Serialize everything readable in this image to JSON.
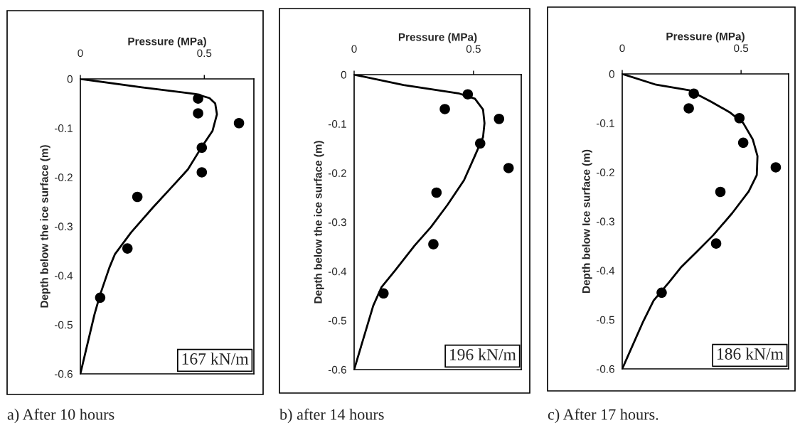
{
  "chart_data": [
    {
      "type": "scatter",
      "title": "a) After 10 hours",
      "xlabel": "Pressure (MPa)",
      "ylabel": "Depth below the ice surface (m)",
      "annotations": [
        "167 kN/m"
      ],
      "xlim": [
        0,
        0.7
      ],
      "xticks": [
        0,
        0.5
      ],
      "ylim": [
        -0.6,
        0
      ],
      "yticks": [
        0,
        -0.1,
        -0.2,
        -0.3,
        -0.4,
        -0.5,
        -0.6
      ],
      "grid": false,
      "series": [
        {
          "color": "#000000",
          "marker": "circle",
          "x": [
            0.475,
            0.475,
            0.64,
            0.49,
            0.49,
            0.23,
            0.19,
            0.08
          ],
          "values": [
            -0.04,
            -0.07,
            -0.09,
            -0.14,
            -0.19,
            -0.24,
            -0.345,
            -0.445
          ]
        },
        {
          "type": "line",
          "color": "#000000",
          "marker": "none",
          "x": [
            0,
            0.248,
            0.466,
            0.521,
            0.544,
            0.551,
            0.533,
            0.489,
            0.434,
            0.369,
            0.292,
            0.205,
            0.139,
            0.117,
            0.079,
            0.057,
            0
          ],
          "values": [
            0,
            -0.017,
            -0.031,
            -0.039,
            -0.05,
            -0.072,
            -0.106,
            -0.139,
            -0.184,
            -0.22,
            -0.262,
            -0.312,
            -0.357,
            -0.384,
            -0.44,
            -0.479,
            -0.6
          ]
        }
      ]
    },
    {
      "type": "scatter",
      "title": "b) after 14 hours",
      "xlabel": "Pressure (MPa)",
      "ylabel": "Depth below the ice surface (m)",
      "annotations": [
        "196 kN/m"
      ],
      "xlim": [
        0,
        0.7
      ],
      "xticks": [
        0,
        0.5
      ],
      "ylim": [
        -0.6,
        0
      ],
      "yticks": [
        0,
        -0.1,
        -0.2,
        -0.3,
        -0.4,
        -0.5,
        -0.6
      ],
      "grid": false,
      "series": [
        {
          "color": "#000000",
          "marker": "circle",
          "x": [
            0.476,
            0.38,
            0.607,
            0.528,
            0.647,
            0.345,
            0.332,
            0.123
          ],
          "values": [
            -0.04,
            -0.07,
            -0.09,
            -0.14,
            -0.19,
            -0.24,
            -0.345,
            -0.445
          ]
        },
        {
          "type": "line",
          "color": "#000000",
          "marker": "none",
          "x": [
            0,
            0.207,
            0.437,
            0.506,
            0.54,
            0.546,
            0.54,
            0.506,
            0.46,
            0.391,
            0.322,
            0.253,
            0.172,
            0.115,
            0.08,
            0
          ],
          "values": [
            0,
            -0.021,
            -0.038,
            -0.049,
            -0.071,
            -0.099,
            -0.127,
            -0.165,
            -0.215,
            -0.265,
            -0.31,
            -0.348,
            -0.398,
            -0.432,
            -0.47,
            -0.6
          ]
        }
      ]
    },
    {
      "type": "scatter",
      "title": "c) After 17 hours.",
      "xlabel": "Pressure (MPa)",
      "ylabel": "Depth below Ice surface (m)",
      "annotations": [
        "186 kN/m"
      ],
      "xlim": [
        0,
        0.7
      ],
      "xticks": [
        0,
        0.5
      ],
      "ylim": [
        -0.6,
        0
      ],
      "yticks": [
        0,
        -0.1,
        -0.2,
        -0.3,
        -0.4,
        -0.5,
        -0.6
      ],
      "grid": false,
      "series": [
        {
          "color": "#000000",
          "marker": "circle",
          "x": [
            0.301,
            0.28,
            0.493,
            0.509,
            0.646,
            0.413,
            0.395,
            0.166
          ],
          "values": [
            -0.04,
            -0.07,
            -0.09,
            -0.14,
            -0.19,
            -0.24,
            -0.345,
            -0.445
          ]
        },
        {
          "type": "line",
          "color": "#000000",
          "marker": "none",
          "x": [
            0,
            0.143,
            0.28,
            0.372,
            0.452,
            0.509,
            0.549,
            0.569,
            0.566,
            0.532,
            0.463,
            0.383,
            0.315,
            0.246,
            0.2,
            0.132,
            0.086,
            0
          ],
          "values": [
            0,
            -0.022,
            -0.033,
            -0.056,
            -0.078,
            -0.1,
            -0.133,
            -0.167,
            -0.206,
            -0.239,
            -0.283,
            -0.328,
            -0.361,
            -0.394,
            -0.422,
            -0.461,
            -0.506,
            -0.6
          ]
        }
      ]
    }
  ]
}
